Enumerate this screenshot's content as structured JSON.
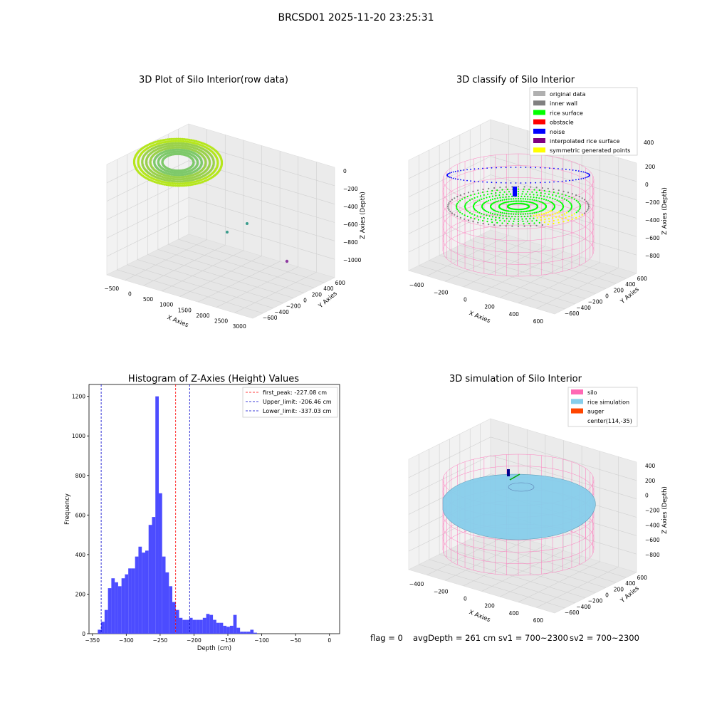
{
  "suptitle": "BRCSD01 2025-11-20 23:25:31",
  "footer": {
    "flag": "flag = 0",
    "avg_depth": "avgDepth = 261 cm",
    "sv1": "sv1 = 700~2300",
    "sv2": "sv2 = 700~2300"
  },
  "colors": {
    "histogram_bar": "#4c4cff",
    "first_peak_line": "#ff0000",
    "limit_line": "#0000cc",
    "silo": "#ff69b4",
    "rice_simulation": "#87ceeb",
    "auger": "#ff4500",
    "original_data": "#b0b0b0",
    "inner_wall": "#808080",
    "rice_surface": "#00ff00",
    "obstacle": "#ff0000",
    "noise": "#0000ff",
    "interpolated_rice_surface": "#800080",
    "symmetric_generated_points": "#ffff00"
  },
  "chart_data": [
    {
      "type": "scatter",
      "title": "3D Plot of Silo Interior(row data)",
      "xlabel": "X Axies",
      "ylabel": "Y Axies",
      "zlabel": "Z Axies (Depth)",
      "x_ticks": [
        "−500",
        "0",
        "500",
        "1000",
        "1500",
        "2000",
        "2500",
        "3000"
      ],
      "y_ticks": [
        "−600",
        "−400",
        "−200",
        "0",
        "200",
        "400",
        "600"
      ],
      "z_ticks": [
        "0",
        "−200",
        "−400",
        "−600",
        "−800",
        "−1000"
      ],
      "xlim": [
        -500,
        3000
      ],
      "ylim": [
        -600,
        600
      ],
      "zlim": [
        -1000,
        0
      ],
      "grid": true
    },
    {
      "type": "scatter",
      "title": "3D classify of Silo Interior",
      "xlabel": "X Axies",
      "ylabel": "Y Axies",
      "zlabel": "Z Axies (Depth)",
      "x_ticks": [
        "−400",
        "−200",
        "0",
        "200",
        "400",
        "600"
      ],
      "y_ticks": [
        "−600",
        "−400",
        "−200",
        "0",
        "200",
        "400",
        "600"
      ],
      "z_ticks": [
        "200",
        "0",
        "−200",
        "−400",
        "−600",
        "−800"
      ],
      "z_extra_tick": "400",
      "legend": [
        "original data",
        "inner wall",
        "rice surface",
        "obstacle",
        "noise",
        "interpolated rice surface",
        "symmetric generated points"
      ],
      "legend_placement": "top-right",
      "grid": true
    },
    {
      "type": "bar",
      "title": "Histogram of Z-Axies (Height) Values",
      "xlabel": "Depth (cm)",
      "ylabel": "Frequency",
      "xlim": [
        -355,
        15
      ],
      "ylim": [
        0,
        1260
      ],
      "x_ticks": [
        -350,
        -300,
        -250,
        -200,
        -150,
        -100,
        -50,
        0
      ],
      "y_ticks": [
        0,
        200,
        400,
        600,
        800,
        1000,
        1200
      ],
      "bin_start": -342,
      "bin_width": 5,
      "values": [
        20,
        60,
        120,
        230,
        280,
        260,
        240,
        280,
        300,
        330,
        330,
        390,
        440,
        410,
        420,
        550,
        590,
        1200,
        710,
        390,
        310,
        240,
        160,
        120,
        80,
        70,
        70,
        80,
        70,
        70,
        70,
        80,
        100,
        95,
        70,
        55,
        55,
        40,
        35,
        40,
        95,
        30,
        10,
        10,
        10,
        20,
        5
      ],
      "lines": [
        {
          "label": "first_peak: -227.08 cm",
          "x": -227.08,
          "color": "red"
        },
        {
          "label": "Upper_limit: -206.46 cm",
          "x": -206.46,
          "color": "blue"
        },
        {
          "label": "Lower_limit: -337.03 cm",
          "x": -337.03,
          "color": "blue"
        }
      ],
      "legend_placement": "top-right",
      "grid": false
    },
    {
      "type": "scatter",
      "title": "3D simulation of Silo Interior",
      "xlabel": "X Axies",
      "ylabel": "Y Axies",
      "zlabel": "Z Axies (Depth)",
      "x_ticks": [
        "−400",
        "−200",
        "0",
        "200",
        "400",
        "600"
      ],
      "y_ticks": [
        "−600",
        "−400",
        "−200",
        "0",
        "200",
        "400",
        "600"
      ],
      "z_ticks": [
        "400",
        "200",
        "0",
        "−200",
        "−400",
        "−600",
        "−800"
      ],
      "legend": [
        "silo",
        "rice simulation",
        "auger",
        "center(114,-35)"
      ],
      "legend_placement": "top-right",
      "grid": true
    }
  ]
}
